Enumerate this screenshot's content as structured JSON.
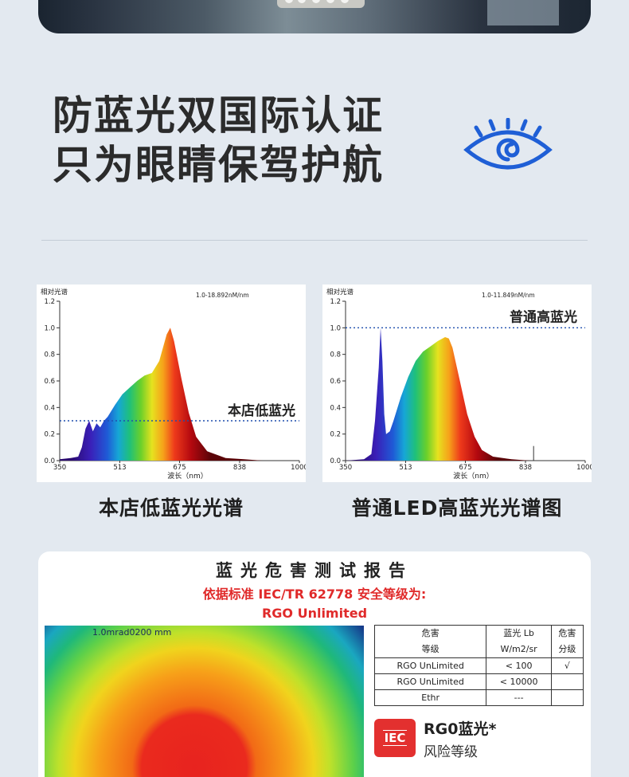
{
  "headline": {
    "line1": "防蓝光双国际认证",
    "line2": "只为眼睛保驾护航"
  },
  "charts": [
    {
      "caption": "本店低蓝光光谱",
      "ylabel": "相对光谱",
      "range_note": "1.0-18.892nM/nm",
      "xlabel": "波长（nm）",
      "annotation": "本店低蓝光",
      "yticks": [
        "1.2",
        "1.0",
        "0.8",
        "0.6",
        "0.4",
        "0.2",
        "0.0"
      ],
      "xticks": [
        "350",
        "513",
        "675",
        "838",
        "1000"
      ],
      "reference_line": 0.3
    },
    {
      "caption": "普通LED高蓝光光谱图",
      "ylabel": "相对光谱",
      "range_note": "1.0-11.849nM/nm",
      "xlabel": "波长（nm）",
      "annotation": "普通高蓝光",
      "yticks": [
        "1.2",
        "1.0",
        "0.8",
        "0.6",
        "0.4",
        "0.2",
        "0.0"
      ],
      "xticks": [
        "350",
        "513",
        "675",
        "838",
        "1000"
      ],
      "reference_line": 1.0
    }
  ],
  "chart_data": [
    {
      "type": "area",
      "title": "",
      "xlabel": "波长（nm）",
      "ylabel": "相对光谱",
      "xlim": [
        350,
        1000
      ],
      "ylim": [
        0,
        1.2
      ],
      "x": [
        350,
        380,
        400,
        410,
        420,
        430,
        440,
        450,
        460,
        470,
        480,
        500,
        520,
        540,
        560,
        580,
        600,
        620,
        640,
        650,
        660,
        680,
        700,
        720,
        750,
        800,
        850,
        900,
        1000
      ],
      "y": [
        0.01,
        0.02,
        0.03,
        0.1,
        0.24,
        0.3,
        0.22,
        0.28,
        0.25,
        0.3,
        0.33,
        0.42,
        0.5,
        0.55,
        0.6,
        0.64,
        0.66,
        0.75,
        0.95,
        1.0,
        0.9,
        0.62,
        0.36,
        0.18,
        0.07,
        0.02,
        0.01,
        0.0,
        0.0
      ]
    },
    {
      "type": "area",
      "title": "",
      "xlabel": "波长（nm）",
      "ylabel": "相对光谱",
      "xlim": [
        350,
        1000
      ],
      "ylim": [
        0,
        1.2
      ],
      "x": [
        350,
        400,
        420,
        430,
        440,
        445,
        450,
        455,
        460,
        470,
        480,
        500,
        520,
        540,
        560,
        580,
        600,
        620,
        630,
        640,
        660,
        680,
        700,
        720,
        750,
        800,
        850,
        900,
        1000
      ],
      "y": [
        0.0,
        0.01,
        0.05,
        0.3,
        0.7,
        1.0,
        0.75,
        0.35,
        0.2,
        0.22,
        0.3,
        0.48,
        0.63,
        0.75,
        0.82,
        0.86,
        0.9,
        0.93,
        0.92,
        0.85,
        0.6,
        0.35,
        0.18,
        0.08,
        0.03,
        0.01,
        0.0,
        0.0,
        0.0
      ]
    }
  ],
  "report": {
    "title": "蓝光危害测试报告",
    "standard_line1": "依据标准 IEC/TR 62778 安全等级为:",
    "standard_line2": "RGO Unlimited",
    "heatmap_label": "1.0mrad0200 mm",
    "table": {
      "headers": [
        [
          "危害",
          "等级"
        ],
        [
          "蓝光 Lb",
          "W/m2/sr"
        ],
        [
          "危害",
          "分级"
        ]
      ],
      "rows": [
        [
          "RGO UnLimited",
          "< 100",
          "√"
        ],
        [
          "RGO UnLimited",
          "< 10000",
          ""
        ],
        [
          "Ethr",
          "---",
          ""
        ]
      ]
    },
    "badge_text": "IEC",
    "rg_title": "RG0蓝光*",
    "rg_sub": "风险等级"
  },
  "colors": {
    "accent_blue": "#1f5fd6",
    "report_red": "#e02a2a",
    "iec_red": "#e3302f"
  }
}
